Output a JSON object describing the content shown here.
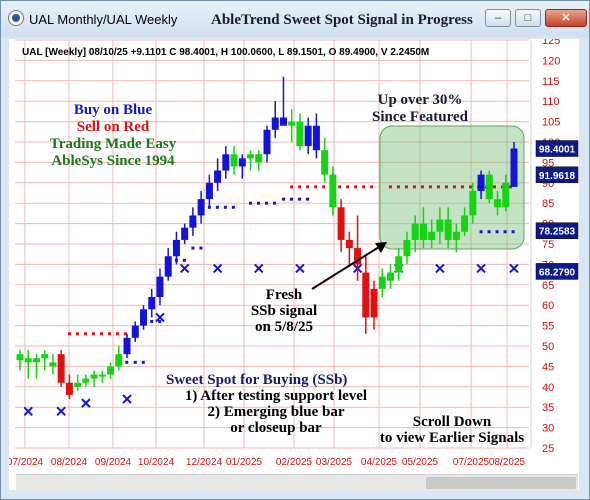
{
  "window": {
    "title": "UAL Monthly/UAL Weekly",
    "headline": "AbleTrend Sweet Spot Signal in Progress"
  },
  "controls": {
    "minimize": "–",
    "maximize": "□",
    "close": "✕"
  },
  "info_line": "UAL [Weekly] 08/10/25  +9.1101 C 98.4001, H 100.0600, L 89.1501, O 89.4900, V 2.2450M",
  "legend": {
    "line1": "Buy on Blue",
    "line2": "Sell on Red",
    "line3": "Trading Made Easy",
    "line4": "AbleSys Since 1994"
  },
  "annotations": {
    "up1": "Up over 30%",
    "up2": "Since Featured",
    "fresh1": "Fresh",
    "fresh2": "SSb signal",
    "fresh3": "on 5/8/25",
    "sweet1": "Sweet Spot for Buying (SSb)",
    "sweet2": "1) After testing support level",
    "sweet3": "2) Emerging blue bar",
    "sweet4": "or closeup bar",
    "scroll1": "Scroll Down",
    "scroll2": "to view Earlier Signals"
  },
  "colors": {
    "blue": "#1414d6",
    "red": "#e01010",
    "green": "#14d414",
    "grid": "#f3b6b6",
    "axis": "#d01010"
  },
  "price_tags": [
    {
      "label": "98.4001",
      "value": 98.4001
    },
    {
      "label": "91.9618",
      "value": 91.9618
    },
    {
      "label": "78.2583",
      "value": 78.2583
    },
    {
      "label": "68.2790",
      "value": 68.279
    }
  ],
  "chart_data": {
    "type": "candlestick",
    "ylim": [
      25,
      125
    ],
    "ytick_labels": [
      "125",
      "120",
      "115",
      "110",
      "105",
      "100",
      "95",
      "90",
      "85",
      "80",
      "75",
      "70",
      "65",
      "60",
      "55",
      "50",
      "45",
      "40",
      "35",
      "30",
      "25"
    ],
    "x_labels": [
      "07/2024",
      "08/2024",
      "09/2024",
      "10/2024",
      "12/2024",
      "01/2025",
      "02/2025",
      "03/2025",
      "04/2025",
      "05/2025",
      "07/2025",
      "08/2025"
    ],
    "bars": [
      {
        "o": 46.5,
        "h": 49,
        "l": 44,
        "c": 48,
        "col": "g"
      },
      {
        "o": 46,
        "h": 49,
        "l": 42,
        "c": 47,
        "col": "g"
      },
      {
        "o": 46,
        "h": 48,
        "l": 42,
        "c": 47,
        "col": "g"
      },
      {
        "o": 47,
        "h": 49,
        "l": 44,
        "c": 48,
        "col": "g"
      },
      {
        "o": 46,
        "h": 48,
        "l": 43,
        "c": 45,
        "col": "g"
      },
      {
        "o": 48,
        "h": 49,
        "l": 40,
        "c": 41,
        "col": "r"
      },
      {
        "o": 41,
        "h": 43,
        "l": 37,
        "c": 38,
        "col": "r"
      },
      {
        "o": 40,
        "h": 43,
        "l": 39,
        "c": 41,
        "col": "g"
      },
      {
        "o": 41,
        "h": 43,
        "l": 40,
        "c": 42,
        "col": "g"
      },
      {
        "o": 42,
        "h": 44,
        "l": 40,
        "c": 43,
        "col": "g"
      },
      {
        "o": 43,
        "h": 44,
        "l": 41,
        "c": 43,
        "col": "g"
      },
      {
        "o": 43,
        "h": 46,
        "l": 42,
        "c": 45,
        "col": "g"
      },
      {
        "o": 45,
        "h": 50,
        "l": 44,
        "c": 48,
        "col": "g"
      },
      {
        "o": 48,
        "h": 53,
        "l": 47,
        "c": 52,
        "col": "b"
      },
      {
        "o": 52,
        "h": 56,
        "l": 51,
        "c": 55,
        "col": "b"
      },
      {
        "o": 55,
        "h": 60,
        "l": 54,
        "c": 59,
        "col": "b"
      },
      {
        "o": 59,
        "h": 64,
        "l": 57,
        "c": 62,
        "col": "b"
      },
      {
        "o": 62,
        "h": 69,
        "l": 60,
        "c": 67,
        "col": "b"
      },
      {
        "o": 67,
        "h": 74,
        "l": 66,
        "c": 72,
        "col": "b"
      },
      {
        "o": 72,
        "h": 78,
        "l": 70,
        "c": 76,
        "col": "b"
      },
      {
        "o": 76,
        "h": 80,
        "l": 75,
        "c": 79,
        "col": "b"
      },
      {
        "o": 79,
        "h": 84,
        "l": 77,
        "c": 82,
        "col": "b"
      },
      {
        "o": 82,
        "h": 88,
        "l": 80,
        "c": 86,
        "col": "b"
      },
      {
        "o": 86,
        "h": 92,
        "l": 84,
        "c": 90,
        "col": "b"
      },
      {
        "o": 90,
        "h": 96,
        "l": 88,
        "c": 93,
        "col": "b"
      },
      {
        "o": 93,
        "h": 99,
        "l": 91,
        "c": 97,
        "col": "b"
      },
      {
        "o": 97,
        "h": 99,
        "l": 92,
        "c": 94,
        "col": "g"
      },
      {
        "o": 94,
        "h": 97,
        "l": 91,
        "c": 96,
        "col": "b"
      },
      {
        "o": 96,
        "h": 98,
        "l": 93,
        "c": 97,
        "col": "g"
      },
      {
        "o": 95,
        "h": 98,
        "l": 93,
        "c": 97,
        "col": "g"
      },
      {
        "o": 97,
        "h": 104,
        "l": 95,
        "c": 103,
        "col": "b"
      },
      {
        "o": 103,
        "h": 110,
        "l": 101,
        "c": 106,
        "col": "b"
      },
      {
        "o": 106,
        "h": 116,
        "l": 104,
        "c": 104,
        "col": "b"
      },
      {
        "o": 104,
        "h": 108,
        "l": 100,
        "c": 105,
        "col": "g"
      },
      {
        "o": 105,
        "h": 107,
        "l": 98,
        "c": 99,
        "col": "g"
      },
      {
        "o": 99,
        "h": 106,
        "l": 97,
        "c": 104,
        "col": "b"
      },
      {
        "o": 104,
        "h": 107,
        "l": 96,
        "c": 98,
        "col": "b"
      },
      {
        "o": 98,
        "h": 101,
        "l": 90,
        "c": 92,
        "col": "g"
      },
      {
        "o": 92,
        "h": 94,
        "l": 82,
        "c": 84,
        "col": "g"
      },
      {
        "o": 84,
        "h": 86,
        "l": 73,
        "c": 76,
        "col": "r"
      },
      {
        "o": 76,
        "h": 78,
        "l": 70,
        "c": 74,
        "col": "r"
      },
      {
        "o": 74,
        "h": 82,
        "l": 66,
        "c": 70,
        "col": "r"
      },
      {
        "o": 68,
        "h": 72,
        "l": 53,
        "c": 57,
        "col": "r"
      },
      {
        "o": 57,
        "h": 66,
        "l": 54,
        "c": 64,
        "col": "r"
      },
      {
        "o": 64,
        "h": 69,
        "l": 62,
        "c": 67,
        "col": "g"
      },
      {
        "o": 66,
        "h": 70,
        "l": 64,
        "c": 68,
        "col": "g"
      },
      {
        "o": 68,
        "h": 74,
        "l": 66,
        "c": 72,
        "col": "g"
      },
      {
        "o": 72,
        "h": 78,
        "l": 70,
        "c": 76,
        "col": "g"
      },
      {
        "o": 76,
        "h": 82,
        "l": 73,
        "c": 80,
        "col": "g"
      },
      {
        "o": 80,
        "h": 84,
        "l": 74,
        "c": 76,
        "col": "g"
      },
      {
        "o": 76,
        "h": 81,
        "l": 74,
        "c": 78,
        "col": "g"
      },
      {
        "o": 78,
        "h": 84,
        "l": 75,
        "c": 81,
        "col": "g"
      },
      {
        "o": 81,
        "h": 84,
        "l": 74,
        "c": 76,
        "col": "g"
      },
      {
        "o": 76,
        "h": 80,
        "l": 73,
        "c": 78,
        "col": "g"
      },
      {
        "o": 78,
        "h": 84,
        "l": 77,
        "c": 82,
        "col": "g"
      },
      {
        "o": 82,
        "h": 90,
        "l": 80,
        "c": 88,
        "col": "g"
      },
      {
        "o": 88,
        "h": 93,
        "l": 86,
        "c": 92,
        "col": "b"
      },
      {
        "o": 92,
        "h": 93,
        "l": 85,
        "c": 86,
        "col": "g"
      },
      {
        "o": 86,
        "h": 88,
        "l": 82,
        "c": 84,
        "col": "g"
      },
      {
        "o": 84,
        "h": 92,
        "l": 83,
        "c": 90,
        "col": "g"
      },
      {
        "o": 89,
        "h": 100,
        "l": 89,
        "c": 98.4,
        "col": "b"
      }
    ],
    "red_dots": [
      {
        "from": 6,
        "to": 14,
        "y": 53
      },
      {
        "from": 33,
        "to": 43,
        "y": 89
      },
      {
        "from": 45,
        "to": 60,
        "y": 89
      }
    ],
    "blue_dots": [
      {
        "from": 12,
        "to": 13,
        "y": 46
      },
      {
        "from": 14,
        "to": 15,
        "y": 46
      },
      {
        "from": 16,
        "to": 17,
        "y": 56
      },
      {
        "from": 19,
        "to": 20,
        "y": 71
      },
      {
        "from": 21,
        "to": 22,
        "y": 74
      },
      {
        "from": 23,
        "to": 26,
        "y": 84
      },
      {
        "from": 28,
        "to": 31,
        "y": 85
      },
      {
        "from": 32,
        "to": 35,
        "y": 86
      },
      {
        "from": 56,
        "to": 60,
        "y": 78
      }
    ],
    "x_marks": [
      {
        "i": 1,
        "y": 34
      },
      {
        "i": 5,
        "y": 34
      },
      {
        "i": 8,
        "y": 36
      },
      {
        "i": 13,
        "y": 37
      },
      {
        "i": 17,
        "y": 57
      },
      {
        "i": 20,
        "y": 69
      },
      {
        "i": 24,
        "y": 69
      },
      {
        "i": 29,
        "y": 69
      },
      {
        "i": 34,
        "y": 69
      },
      {
        "i": 41,
        "y": 69
      },
      {
        "i": 46,
        "y": 69
      },
      {
        "i": 51,
        "y": 69
      },
      {
        "i": 56,
        "y": 69
      },
      {
        "i": 60,
        "y": 69
      }
    ]
  }
}
